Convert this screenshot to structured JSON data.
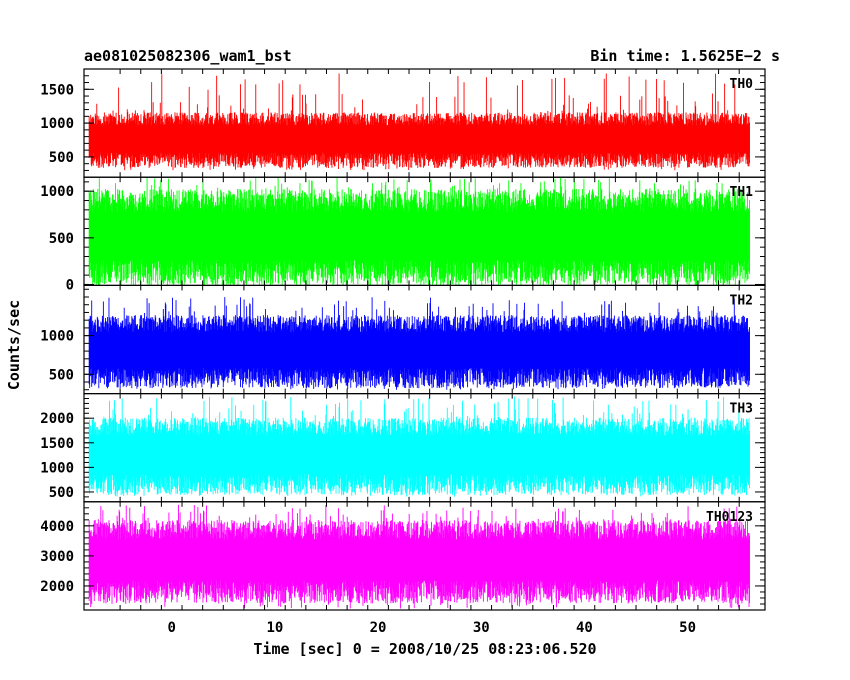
{
  "chart_data": {
    "type": "line",
    "title_left": "ae081025082306_wam1_bst",
    "title_right": "Bin time: 1.5625E−2 s",
    "xlabel": "Time [sec] 0 = 2008/10/25 08:23:06.520",
    "ylabel": "Counts/sec",
    "x_range": [
      -8.5,
      57.5
    ],
    "x_data_range": [
      -8,
      56
    ],
    "x_ticks": [
      0,
      10,
      20,
      30,
      40,
      50
    ],
    "grid": false,
    "panels": [
      {
        "name": "TH0",
        "color": "#ff0000",
        "ylim": [
          200,
          1800
        ],
        "yticks": [
          500,
          1000,
          1500
        ],
        "values": {
          "min": 300,
          "max": 1750,
          "typ_low": 450,
          "typ_high": 1100
        }
      },
      {
        "name": "TH1",
        "color": "#00ff00",
        "ylim": [
          -10,
          1150
        ],
        "yticks": [
          0,
          500,
          1000
        ],
        "values": {
          "min": 0,
          "max": 1150,
          "typ_low": 120,
          "typ_high": 950
        }
      },
      {
        "name": "TH2",
        "color": "#0000ff",
        "ylim": [
          250,
          1650
        ],
        "yticks": [
          500,
          1000
        ],
        "values": {
          "min": 300,
          "max": 1500,
          "typ_low": 450,
          "typ_high": 1200
        }
      },
      {
        "name": "TH3",
        "color": "#00ffff",
        "ylim": [
          300,
          2500
        ],
        "yticks": [
          500,
          1000,
          1500,
          2000
        ],
        "values": {
          "min": 400,
          "max": 2450,
          "typ_low": 650,
          "typ_high": 1900
        }
      },
      {
        "name": "TH0123",
        "color": "#ff00ff",
        "ylim": [
          1200,
          4800
        ],
        "yticks": [
          2000,
          3000,
          4000
        ],
        "values": {
          "min": 1250,
          "max": 4700,
          "typ_low": 1800,
          "typ_high": 4000
        }
      }
    ]
  }
}
